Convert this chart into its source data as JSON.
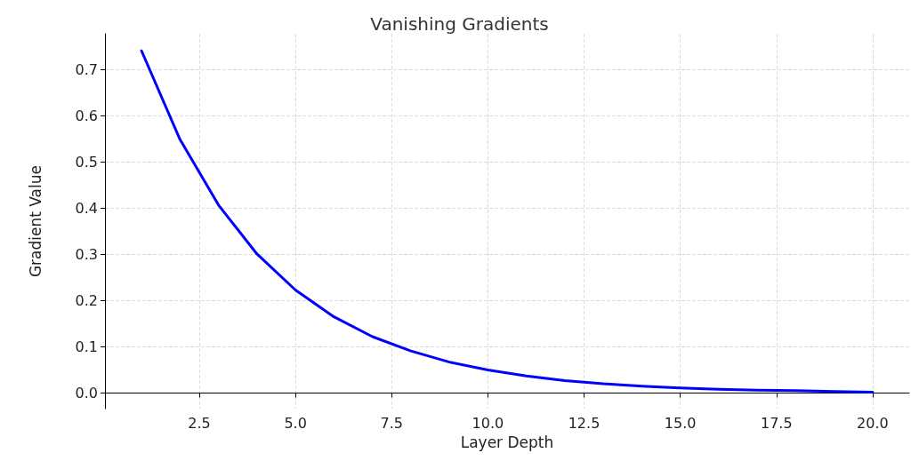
{
  "chart_data": {
    "type": "line",
    "title": "Vanishing Gradients",
    "xlabel": "Layer Depth",
    "ylabel": "Gradient Value",
    "x": [
      1,
      2,
      3,
      4,
      5,
      6,
      7,
      8,
      9,
      10,
      11,
      12,
      13,
      14,
      15,
      16,
      17,
      18,
      19,
      20
    ],
    "series": [
      {
        "color": "#0000ff",
        "values": [
          0.741,
          0.549,
          0.407,
          0.301,
          0.223,
          0.165,
          0.122,
          0.091,
          0.067,
          0.05,
          0.037,
          0.027,
          0.02,
          0.015,
          0.011,
          0.008,
          0.006,
          0.005,
          0.003,
          0.002
        ]
      }
    ],
    "xlim": [
      0.05,
      20.95
    ],
    "xticks": [
      2.5,
      {
        "value": 5,
        "label": "5.0"
      },
      7.5,
      {
        "value": 10,
        "label": "10.0"
      },
      12.5,
      {
        "value": 15,
        "label": "15.0"
      },
      17.5,
      {
        "value": 20,
        "label": "20.0"
      }
    ],
    "ylim": [
      -0.034,
      0.778
    ],
    "yticks": [
      {
        "value": 0,
        "label": "0.0"
      },
      0.1,
      0.2,
      0.3,
      0.4,
      0.5,
      0.6,
      0.7
    ],
    "grid": true,
    "line_style": "solid",
    "marker": "none"
  }
}
